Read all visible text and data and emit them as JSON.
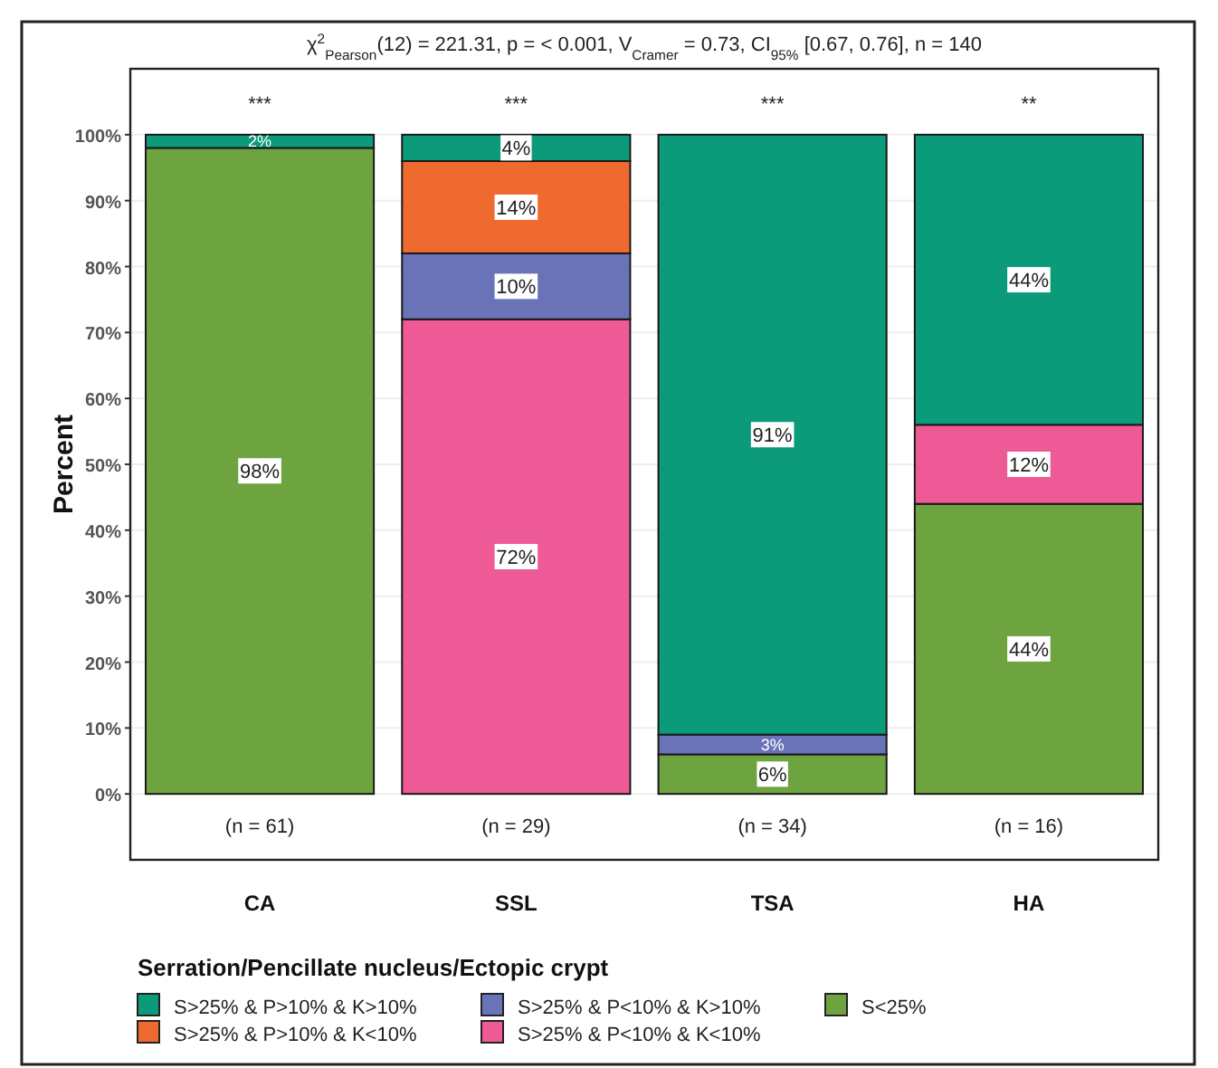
{
  "chart_data": {
    "type": "bar",
    "stacked": true,
    "title": "χ$^{2}$$_{Pearson}$(12) = 221.31, p = < 0.001, V$_{Cramer}$ = 0.73, CI$_{95%}$ [0.67, 0.76], n = 140",
    "ylabel": "Percent",
    "legend_title": "Serration/Pencillate nucleus/Ectopic crypt",
    "categories": [
      "CA",
      "SSL",
      "TSA",
      "HA"
    ],
    "series": [
      {
        "name": "S<25%",
        "color": "#6ea43f",
        "values": [
          98,
          null,
          6,
          44
        ],
        "value_labels": [
          "98%",
          null,
          "6%",
          "44%"
        ]
      },
      {
        "name": "S>25% & P<10% & K<10%",
        "color": "#ee5a96",
        "values": [
          null,
          72,
          null,
          12
        ],
        "value_labels": [
          null,
          "72%",
          null,
          "12%"
        ]
      },
      {
        "name": "S>25% & P<10% & K>10%",
        "color": "#6a73b8",
        "values": [
          null,
          10,
          3,
          null
        ],
        "value_labels": [
          null,
          "10%",
          "3%",
          null
        ]
      },
      {
        "name": "S>25% & P>10% & K<10%",
        "color": "#ef6a2e",
        "values": [
          null,
          14,
          null,
          null
        ],
        "value_labels": [
          null,
          "14%",
          null,
          null
        ]
      },
      {
        "name": "S>25% & P>10% & K>10%",
        "color": "#0b9b7a",
        "values": [
          2,
          4,
          91,
          44
        ],
        "value_labels": [
          "2%",
          "4%",
          "91%",
          "44%"
        ]
      }
    ],
    "ylim": [
      -10,
      110
    ],
    "yticks": [
      {
        "value": 0,
        "label": "0%"
      },
      {
        "value": 10,
        "label": "10%"
      },
      {
        "value": 20,
        "label": "20%"
      },
      {
        "value": 30,
        "label": "30%"
      },
      {
        "value": 40,
        "label": "40%"
      },
      {
        "value": 50,
        "label": "50%"
      },
      {
        "value": 60,
        "label": "60%"
      },
      {
        "value": 70,
        "label": "70%"
      },
      {
        "value": 80,
        "label": "80%"
      },
      {
        "value": 90,
        "label": "90%"
      },
      {
        "value": 100,
        "label": "100%"
      }
    ],
    "grid": "y",
    "legend": "bottom",
    "annotations": [
      "***",
      "***",
      "***",
      "**",
      "(n = 61)",
      "(n = 29)",
      "(n = 34)",
      "(n = 16)"
    ]
  }
}
